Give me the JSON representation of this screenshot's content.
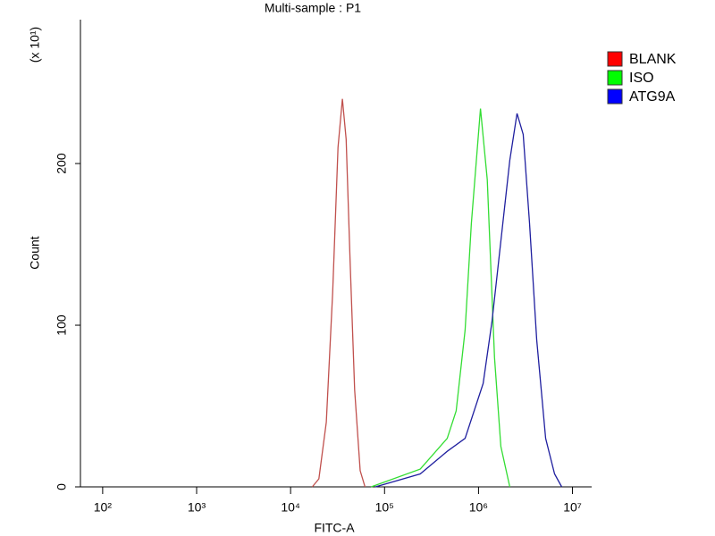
{
  "chart_data": {
    "type": "line",
    "title": "Multi-sample : P1",
    "x_label": "FITC-A",
    "y_label": "Count",
    "y_unit": "(x 10¹)",
    "log_x": true,
    "legend": "top-right",
    "xlim": [
      58,
      16000000
    ],
    "ylim": [
      0,
      289
    ],
    "xticks": [
      {
        "value": 100,
        "label": "10²"
      },
      {
        "value": 1000,
        "label": "10³"
      },
      {
        "value": 10000,
        "label": "10⁴"
      },
      {
        "value": 100000,
        "label": "10⁵"
      },
      {
        "value": 1000000,
        "label": "10⁶"
      },
      {
        "value": 10000000,
        "label": "10⁷"
      }
    ],
    "yticks": [
      0,
      100,
      200
    ],
    "series": [
      {
        "name": "BLANK",
        "color": "#c0504d",
        "box_color": "#ff0000",
        "x": [
          17000,
          20000,
          24000,
          28000,
          32000,
          35600,
          39000,
          43000,
          48000,
          55000,
          62000
        ],
        "values": [
          0,
          5,
          40,
          120,
          210,
          240,
          215,
          140,
          60,
          10,
          0
        ]
      },
      {
        "name": "ISO",
        "color": "#33dd33",
        "box_color": "#00ff00",
        "x": [
          72000,
          240000,
          465000,
          578000,
          720000,
          840000,
          1050000,
          1240000,
          1480000,
          1730000,
          2150000
        ],
        "values": [
          0,
          11,
          30,
          47,
          97,
          163,
          234,
          190,
          80,
          25,
          0
        ]
      },
      {
        "name": "ATG9A",
        "color": "#1f1f9f",
        "box_color": "#0000ff",
        "x": [
          80000,
          240000,
          465000,
          720000,
          1120000,
          1390000,
          1730000,
          2150000,
          2570000,
          2990000,
          3490000,
          4160000,
          5180000,
          6450000,
          7690000
        ],
        "values": [
          0,
          8,
          22,
          30,
          64,
          102,
          152,
          202,
          231,
          218,
          163,
          91,
          30,
          8,
          0
        ]
      }
    ]
  }
}
